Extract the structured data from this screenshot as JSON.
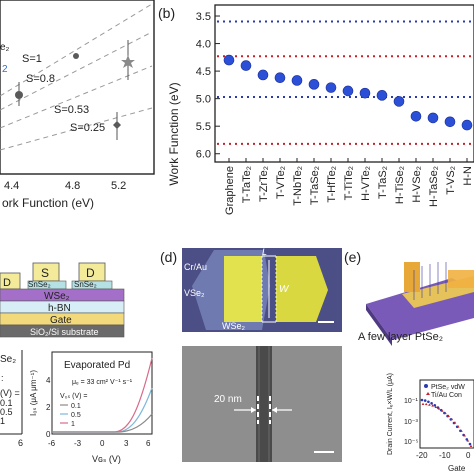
{
  "panel_b": {
    "label": "(b)",
    "ylabel": "Work Function (eV)",
    "yticks": [
      "3.5",
      "4.0",
      "4.5",
      "5.0",
      "5.5",
      "6.0"
    ],
    "ref_lines": [
      {
        "value": 3.6,
        "color": "#2a3bb0"
      },
      {
        "value": 4.23,
        "color": "#c8202a"
      },
      {
        "value": 4.97,
        "color": "#2a3bb0"
      },
      {
        "value": 5.82,
        "color": "#c8202a"
      }
    ]
  },
  "chart_data": {
    "type": "scatter",
    "categories": [
      "Graphene",
      "T-TaTe₂",
      "T-ZrTe₂",
      "T-VTe₂",
      "T-NbTe₂",
      "T-TaSe₂",
      "T-HfTe₂",
      "T-TiTe₂",
      "H-VTe₂",
      "T-TaS₂",
      "H-TiSe₂",
      "H-VSe₂",
      "H-TaSe₂",
      "T-VS₂",
      "H-N"
    ],
    "values": [
      4.3,
      4.4,
      4.57,
      4.62,
      4.67,
      4.74,
      4.8,
      4.86,
      4.9,
      4.94,
      5.05,
      5.32,
      5.35,
      5.42,
      5.48
    ],
    "ylim": [
      3.3,
      6.15
    ],
    "color": "#2b4fd6"
  },
  "panel_a": {
    "s_labels": [
      "S=1",
      "S=0.8",
      "S=0.53",
      "S=0.25"
    ],
    "xticks": [
      "4.4",
      "4.8",
      "5.2"
    ],
    "xlabel": "ork Function (eV)",
    "legend_frag": [
      "e₂",
      "2"
    ]
  },
  "panel_c": {
    "electrodes": [
      "S",
      "D",
      "D"
    ],
    "snse_labels": [
      "SnSe₂",
      "SnSe₂"
    ],
    "layers": [
      "WSe₂",
      "h-BN",
      "Gate",
      "SiO₂/Si substrate"
    ],
    "left_frag": [
      "Se₂",
      ":",
      "(V) =",
      "0.1",
      "0.5",
      "1",
      "6"
    ],
    "plot_title": "Evaporated Pd",
    "mobility": "μₑ = 33 cm² V⁻¹ s⁻¹",
    "vds_title": "V₀ₛ (V) =",
    "vds_values": [
      "0.1",
      "0.5",
      "1"
    ],
    "ylabel": "I₀ₛ (μA μm⁻¹)",
    "xlabel": "Vɢₛ (V)",
    "yticks": [
      "0",
      "2",
      "4"
    ],
    "xticks": [
      "-6",
      "-3",
      "0",
      "3",
      "6"
    ]
  },
  "panel_d": {
    "label": "(d)",
    "cr_au": "Cr/Au",
    "vse2": "VSe₂",
    "wse2": "WSe₂",
    "L": "L",
    "W": "W",
    "sem_label": "20 nm"
  },
  "panel_e": {
    "label": "(e)",
    "caption": "A few layer PtSe₂",
    "legend": [
      "PtSe₂ vdW",
      "Ti/Au Con"
    ],
    "ylabel": "Drain Current, Iₑ×W/L (μA)",
    "yticks": [
      "10⁻¹",
      "10⁻³",
      "10⁻⁵"
    ],
    "xticks": [
      "-20",
      "-10",
      "0"
    ],
    "xlabel": "Gate"
  }
}
